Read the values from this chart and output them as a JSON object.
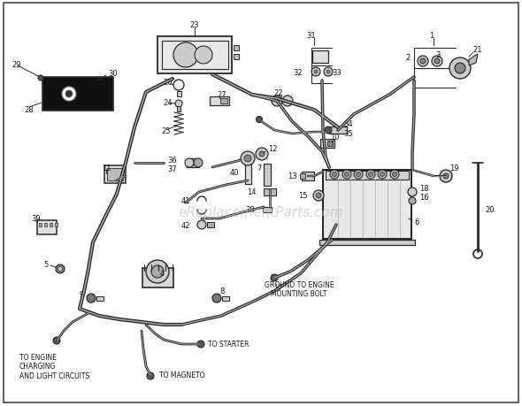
{
  "bg_color": "#ffffff",
  "line_color": "#2a2a2a",
  "text_color": "#1a1a1a",
  "watermark": "eReplacementParts.com",
  "figsize": [
    5.9,
    4.6
  ],
  "dpi": 100,
  "labels": {
    "to_starter": "TO STARTER",
    "to_engine": "TO ENGINE\nCHARGING\nAND LIGHT CIRCUITS",
    "to_magneto": "TO MAGNETO",
    "ground": "GROUND TO ENGINE\nMOUNTING BOLT"
  }
}
